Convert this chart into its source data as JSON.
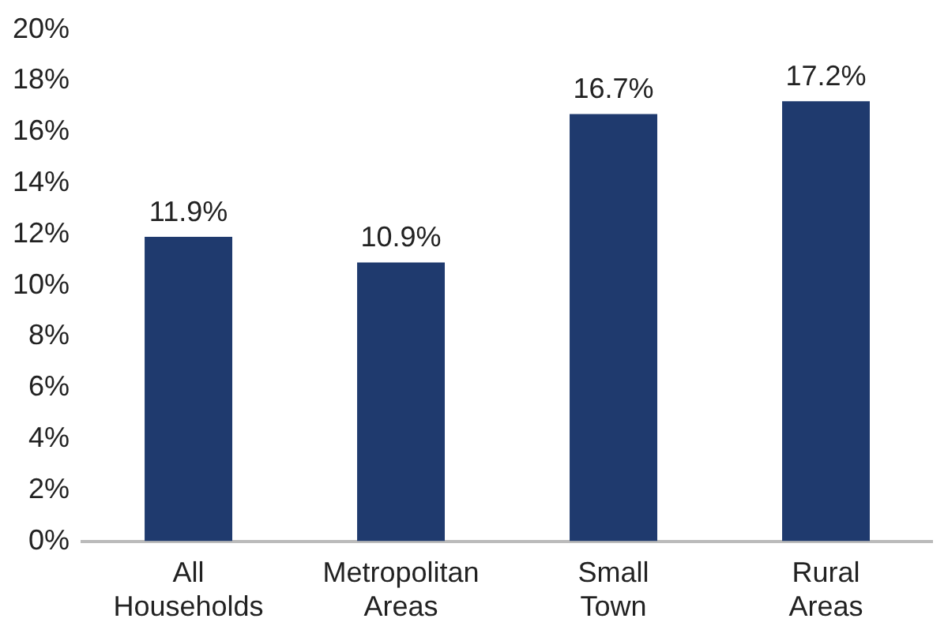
{
  "chart_data": {
    "type": "bar",
    "categories": [
      "All Households",
      "Metropolitan Areas",
      "Small Town",
      "Rural Areas"
    ],
    "values": [
      11.9,
      10.9,
      16.7,
      17.2
    ],
    "value_labels": [
      "11.9%",
      "10.9%",
      "16.7%",
      "17.2%"
    ],
    "color": "#1f3a6e",
    "ylim": [
      0,
      20
    ],
    "yticks": [
      {
        "value": 0,
        "label": "0%"
      },
      {
        "value": 2,
        "label": "2%"
      },
      {
        "value": 4,
        "label": "4%"
      },
      {
        "value": 6,
        "label": "6%"
      },
      {
        "value": 8,
        "label": "8%"
      },
      {
        "value": 10,
        "label": "10%"
      },
      {
        "value": 12,
        "label": "12%"
      },
      {
        "value": 14,
        "label": "14%"
      },
      {
        "value": 16,
        "label": "16%"
      },
      {
        "value": 18,
        "label": "18%"
      },
      {
        "value": 20,
        "label": "20%"
      }
    ],
    "grid": false,
    "legend": false
  }
}
